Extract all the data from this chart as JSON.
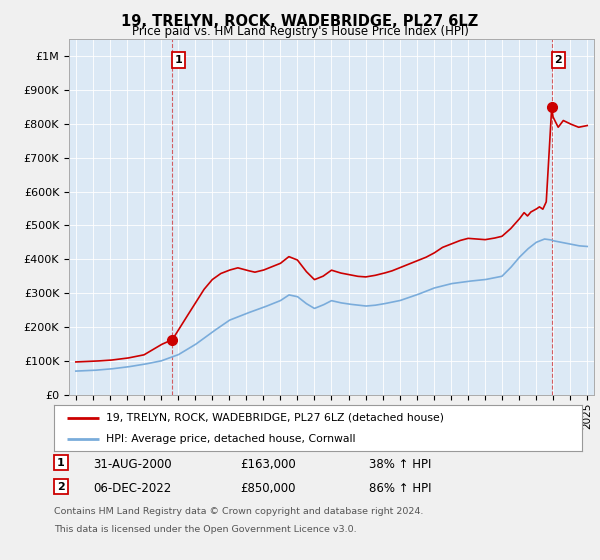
{
  "title": "19, TRELYN, ROCK, WADEBRIDGE, PL27 6LZ",
  "subtitle": "Price paid vs. HM Land Registry's House Price Index (HPI)",
  "legend_line1": "19, TRELYN, ROCK, WADEBRIDGE, PL27 6LZ (detached house)",
  "legend_line2": "HPI: Average price, detached house, Cornwall",
  "annotation1_label": "1",
  "annotation1_date": "31-AUG-2000",
  "annotation1_price": "£163,000",
  "annotation1_change": "38% ↑ HPI",
  "annotation2_label": "2",
  "annotation2_date": "06-DEC-2022",
  "annotation2_price": "£850,000",
  "annotation2_change": "86% ↑ HPI",
  "footnote1": "Contains HM Land Registry data © Crown copyright and database right 2024.",
  "footnote2": "This data is licensed under the Open Government Licence v3.0.",
  "red_color": "#cc0000",
  "blue_color": "#7aacdb",
  "plot_bg_color": "#dce9f5",
  "background_color": "#f0f0f0",
  "ylim": [
    0,
    1050000
  ],
  "yticks": [
    0,
    100000,
    200000,
    300000,
    400000,
    500000,
    600000,
    700000,
    800000,
    900000,
    1000000
  ],
  "ytick_labels": [
    "£0",
    "£100K",
    "£200K",
    "£300K",
    "£400K",
    "£500K",
    "£600K",
    "£700K",
    "£800K",
    "£900K",
    "£1M"
  ],
  "sale1_x": 2000.667,
  "sale1_y": 163000,
  "sale2_x": 2022.92,
  "sale2_y": 850000,
  "xmin": 1994.6,
  "xmax": 2025.4,
  "xticks": [
    1995,
    1996,
    1997,
    1998,
    1999,
    2000,
    2001,
    2002,
    2003,
    2004,
    2005,
    2006,
    2007,
    2008,
    2009,
    2010,
    2011,
    2012,
    2013,
    2014,
    2015,
    2016,
    2017,
    2018,
    2019,
    2020,
    2021,
    2022,
    2023,
    2024,
    2025
  ],
  "hpi_segments": [
    [
      1995.0,
      70000
    ],
    [
      1996.0,
      72000
    ],
    [
      1997.0,
      76000
    ],
    [
      1998.0,
      82000
    ],
    [
      1999.0,
      90000
    ],
    [
      2000.0,
      100000
    ],
    [
      2001.0,
      118000
    ],
    [
      2002.0,
      148000
    ],
    [
      2003.0,
      185000
    ],
    [
      2004.0,
      220000
    ],
    [
      2005.0,
      240000
    ],
    [
      2006.0,
      258000
    ],
    [
      2007.0,
      278000
    ],
    [
      2007.5,
      295000
    ],
    [
      2008.0,
      290000
    ],
    [
      2008.5,
      270000
    ],
    [
      2009.0,
      255000
    ],
    [
      2009.5,
      265000
    ],
    [
      2010.0,
      278000
    ],
    [
      2010.5,
      272000
    ],
    [
      2011.0,
      268000
    ],
    [
      2011.5,
      265000
    ],
    [
      2012.0,
      262000
    ],
    [
      2012.5,
      264000
    ],
    [
      2013.0,
      268000
    ],
    [
      2014.0,
      278000
    ],
    [
      2015.0,
      295000
    ],
    [
      2016.0,
      315000
    ],
    [
      2017.0,
      328000
    ],
    [
      2018.0,
      335000
    ],
    [
      2019.0,
      340000
    ],
    [
      2020.0,
      350000
    ],
    [
      2020.5,
      375000
    ],
    [
      2021.0,
      405000
    ],
    [
      2021.5,
      430000
    ],
    [
      2022.0,
      450000
    ],
    [
      2022.5,
      460000
    ],
    [
      2022.92,
      457000
    ],
    [
      2023.0,
      455000
    ],
    [
      2023.5,
      450000
    ],
    [
      2024.0,
      445000
    ],
    [
      2024.5,
      440000
    ],
    [
      2025.0,
      438000
    ]
  ],
  "prop_segments": [
    [
      1995.0,
      97000
    ],
    [
      1996.0,
      99000
    ],
    [
      1997.0,
      102000
    ],
    [
      1998.0,
      108000
    ],
    [
      1999.0,
      118000
    ],
    [
      1999.5,
      133000
    ],
    [
      2000.0,
      148000
    ],
    [
      2000.667,
      163000
    ],
    [
      2001.0,
      190000
    ],
    [
      2001.5,
      230000
    ],
    [
      2002.0,
      270000
    ],
    [
      2002.5,
      310000
    ],
    [
      2003.0,
      340000
    ],
    [
      2003.5,
      358000
    ],
    [
      2004.0,
      368000
    ],
    [
      2004.5,
      375000
    ],
    [
      2005.0,
      368000
    ],
    [
      2005.5,
      362000
    ],
    [
      2006.0,
      368000
    ],
    [
      2006.5,
      378000
    ],
    [
      2007.0,
      388000
    ],
    [
      2007.5,
      408000
    ],
    [
      2008.0,
      398000
    ],
    [
      2008.5,
      365000
    ],
    [
      2009.0,
      340000
    ],
    [
      2009.5,
      350000
    ],
    [
      2010.0,
      368000
    ],
    [
      2010.5,
      360000
    ],
    [
      2011.0,
      355000
    ],
    [
      2011.5,
      350000
    ],
    [
      2012.0,
      348000
    ],
    [
      2012.5,
      352000
    ],
    [
      2013.0,
      358000
    ],
    [
      2013.5,
      365000
    ],
    [
      2014.0,
      375000
    ],
    [
      2014.5,
      385000
    ],
    [
      2015.0,
      395000
    ],
    [
      2015.5,
      405000
    ],
    [
      2016.0,
      418000
    ],
    [
      2016.5,
      435000
    ],
    [
      2017.0,
      445000
    ],
    [
      2017.5,
      455000
    ],
    [
      2018.0,
      462000
    ],
    [
      2018.5,
      460000
    ],
    [
      2019.0,
      458000
    ],
    [
      2019.5,
      462000
    ],
    [
      2020.0,
      468000
    ],
    [
      2020.5,
      490000
    ],
    [
      2021.0,
      518000
    ],
    [
      2021.3,
      538000
    ],
    [
      2021.5,
      528000
    ],
    [
      2021.7,
      540000
    ],
    [
      2022.0,
      548000
    ],
    [
      2022.2,
      555000
    ],
    [
      2022.4,
      548000
    ],
    [
      2022.6,
      570000
    ],
    [
      2022.92,
      850000
    ],
    [
      2023.0,
      820000
    ],
    [
      2023.3,
      790000
    ],
    [
      2023.6,
      810000
    ],
    [
      2024.0,
      800000
    ],
    [
      2024.5,
      790000
    ],
    [
      2025.0,
      795000
    ]
  ]
}
